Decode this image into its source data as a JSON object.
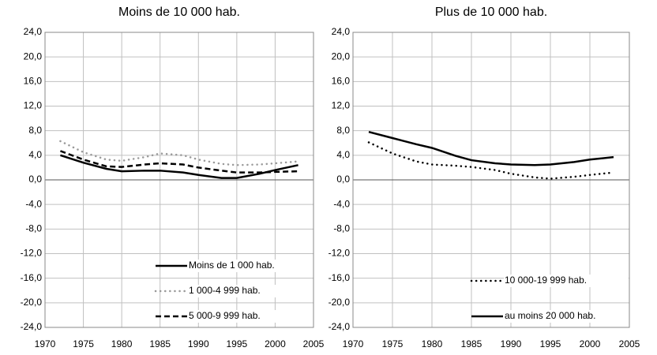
{
  "chart_data": [
    {
      "type": "line",
      "title": "Moins de 10 000 hab.",
      "x": [
        1972,
        1975,
        1978,
        1980,
        1983,
        1985,
        1988,
        1990,
        1993,
        1995,
        1998,
        2000,
        2003
      ],
      "series": [
        {
          "name": "Moins de 1 000 hab.",
          "color": "#000000",
          "dash": "solid",
          "values": [
            4.0,
            2.8,
            1.8,
            1.4,
            1.5,
            1.5,
            1.2,
            0.8,
            0.3,
            0.3,
            1.0,
            1.6,
            2.4
          ]
        },
        {
          "name": "1 000-4 999 hab.",
          "color": "#999999",
          "dash": "dotted",
          "values": [
            6.3,
            4.5,
            3.3,
            3.1,
            3.7,
            4.3,
            4.0,
            3.3,
            2.6,
            2.4,
            2.5,
            2.7,
            3.0
          ]
        },
        {
          "name": "5 000-9 999 hab.",
          "color": "#000000",
          "dash": "dashed",
          "values": [
            4.7,
            3.3,
            2.2,
            2.1,
            2.5,
            2.7,
            2.5,
            2.0,
            1.5,
            1.2,
            1.2,
            1.3,
            1.4
          ]
        }
      ],
      "xlim": [
        1970,
        2005
      ],
      "xticks": [
        1970,
        1975,
        1980,
        1985,
        1990,
        1995,
        2000,
        2005
      ],
      "ylim": [
        -24,
        24
      ],
      "yticks": [
        {
          "value": -24,
          "label": "-24,0"
        },
        {
          "value": -20,
          "label": "-20,0"
        },
        {
          "value": -16,
          "label": "-16,0"
        },
        {
          "value": -12,
          "label": "-12,0"
        },
        {
          "value": -8,
          "label": "-8,0"
        },
        {
          "value": -4,
          "label": "-4,0"
        },
        {
          "value": 0,
          "label": "0,0"
        },
        {
          "value": 4,
          "label": "4,0"
        },
        {
          "value": 8,
          "label": "8,0"
        },
        {
          "value": 12,
          "label": "12,0"
        },
        {
          "value": 16,
          "label": "16,0"
        },
        {
          "value": 20,
          "label": "20,0"
        },
        {
          "value": 24,
          "label": "24,0"
        }
      ],
      "grid": true,
      "legend": "lower right"
    },
    {
      "type": "line",
      "title": "Plus de 10 000 hab.",
      "x": [
        1972,
        1975,
        1978,
        1980,
        1983,
        1985,
        1988,
        1990,
        1993,
        1995,
        1998,
        2000,
        2003
      ],
      "series": [
        {
          "name": "10 000-19 999 hab.",
          "color": "#000000",
          "dash": "dotted",
          "values": [
            6.1,
            4.3,
            3.0,
            2.5,
            2.3,
            2.1,
            1.6,
            1.0,
            0.4,
            0.2,
            0.5,
            0.8,
            1.2
          ]
        },
        {
          "name": "au moins 20 000 hab.",
          "color": "#000000",
          "dash": "solid",
          "values": [
            7.8,
            6.8,
            5.8,
            5.2,
            3.9,
            3.2,
            2.7,
            2.5,
            2.4,
            2.5,
            2.9,
            3.3,
            3.7
          ]
        }
      ],
      "xlim": [
        1970,
        2005
      ],
      "xticks": [
        1970,
        1975,
        1980,
        1985,
        1990,
        1995,
        2000,
        2005
      ],
      "ylim": [
        -24,
        24
      ],
      "yticks": [
        {
          "value": -24,
          "label": "-24,0"
        },
        {
          "value": -20,
          "label": "-20,0"
        },
        {
          "value": -16,
          "label": "-16,0"
        },
        {
          "value": -12,
          "label": "-12,0"
        },
        {
          "value": -8,
          "label": "-8,0"
        },
        {
          "value": -4,
          "label": "-4,0"
        },
        {
          "value": 0,
          "label": "0,0"
        },
        {
          "value": 4,
          "label": "4,0"
        },
        {
          "value": 8,
          "label": "8,0"
        },
        {
          "value": 12,
          "label": "12,0"
        },
        {
          "value": 16,
          "label": "16,0"
        },
        {
          "value": 20,
          "label": "20,0"
        },
        {
          "value": 24,
          "label": "24,0"
        }
      ],
      "grid": true,
      "legend": "lower right"
    }
  ]
}
